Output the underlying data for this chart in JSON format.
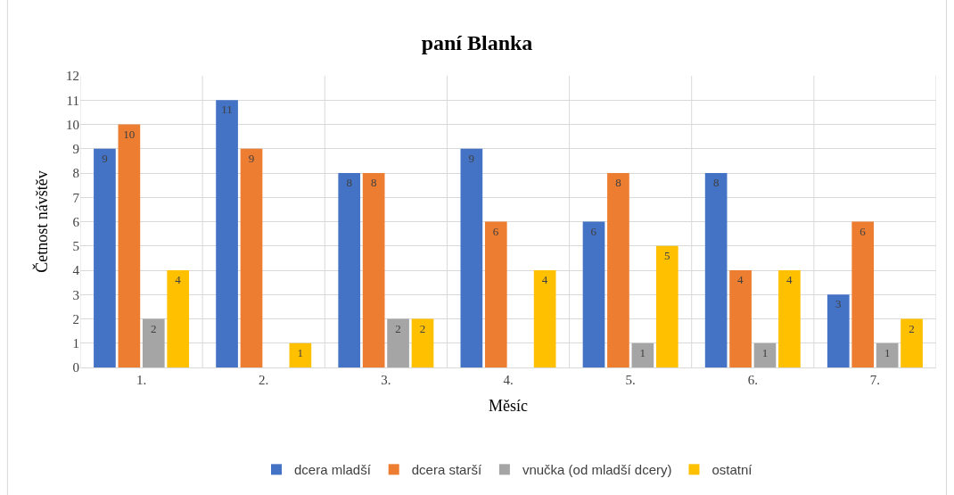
{
  "chart_data": {
    "type": "bar",
    "title": "paní Blanka",
    "xlabel": "Měsíc",
    "ylabel": "Četnost návštěv",
    "categories": [
      "1.",
      "2.",
      "3.",
      "4.",
      "5.",
      "6.",
      "7."
    ],
    "series": [
      {
        "name": "dcera mladší",
        "color": "#4472c4",
        "values": [
          9,
          11,
          8,
          9,
          6,
          8,
          3
        ]
      },
      {
        "name": "dcera starší",
        "color": "#ed7d31",
        "values": [
          10,
          9,
          8,
          6,
          8,
          4,
          6
        ]
      },
      {
        "name": "vnučka (od mladší dcery)",
        "color": "#a5a5a5",
        "values": [
          2,
          null,
          2,
          null,
          1,
          1,
          1
        ]
      },
      {
        "name": "ostatní",
        "color": "#ffc000",
        "values": [
          4,
          1,
          2,
          4,
          5,
          4,
          2
        ]
      }
    ],
    "ylim": [
      0,
      12
    ],
    "yticks": [
      0,
      1,
      2,
      3,
      4,
      5,
      6,
      7,
      8,
      9,
      10,
      11,
      12
    ],
    "grid": true,
    "legend": "bottom",
    "data_labels": true
  }
}
